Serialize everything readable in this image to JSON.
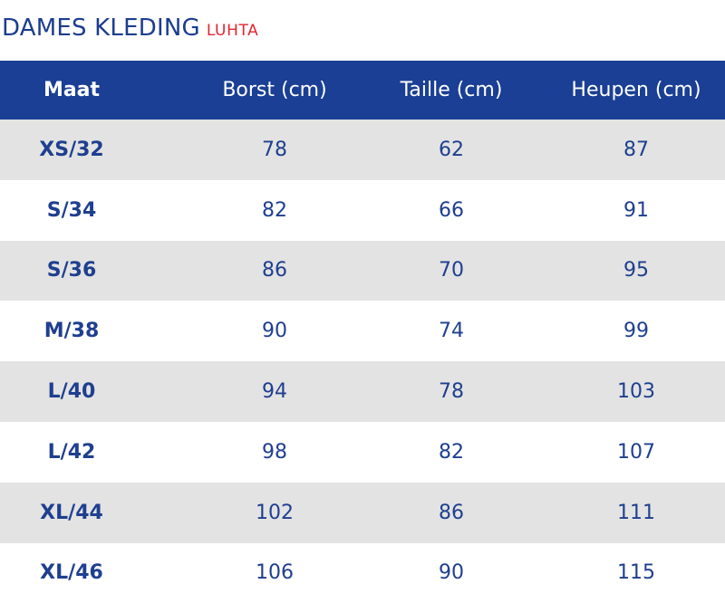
{
  "header": {
    "title": "DAMES KLEDING",
    "brand": "LUHTA"
  },
  "table": {
    "columns": [
      "Maat",
      "Borst (cm)",
      "Taille (cm)",
      "Heupen (cm)"
    ],
    "rows": [
      [
        "XS/32",
        "78",
        "62",
        "87"
      ],
      [
        "S/34",
        "82",
        "66",
        "91"
      ],
      [
        "S/36",
        "86",
        "70",
        "95"
      ],
      [
        "M/38",
        "90",
        "74",
        "99"
      ],
      [
        "L/40",
        "94",
        "78",
        "103"
      ],
      [
        "L/42",
        "98",
        "82",
        "107"
      ],
      [
        "XL/44",
        "102",
        "86",
        "111"
      ],
      [
        "XL/46",
        "106",
        "90",
        "115"
      ]
    ]
  },
  "colors": {
    "header_background": "#1a3f95",
    "title": "#1c3d8f",
    "brand": "#e3262f",
    "row_stripe": "#e3e3e3",
    "cell_text": "#1f3f8f"
  }
}
